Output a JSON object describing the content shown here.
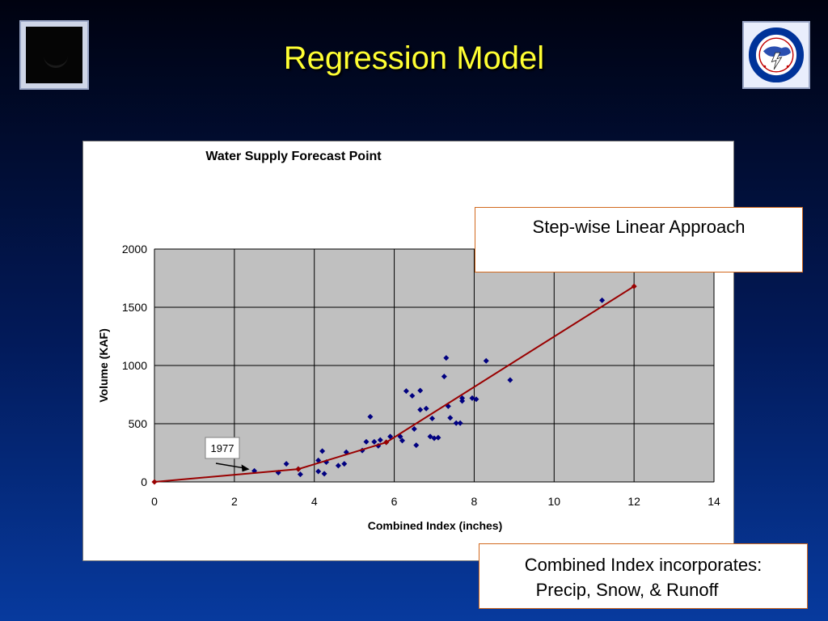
{
  "slide": {
    "title": "Regression Model"
  },
  "logos": {
    "left": {
      "icon": "dark-emblem"
    },
    "right": {
      "icon": "nws-seal",
      "text": "NATIONAL WEATHER SERVICE"
    }
  },
  "callouts": {
    "method": "Step-wise Linear Approach",
    "index_line1": "Combined Index incorporates:",
    "index_line2": "Precip, Snow, & Runoff"
  },
  "chart_data": {
    "type": "scatter",
    "title": "Water Supply Forecast Point",
    "xlabel": "Combined Index (inches)",
    "ylabel": "Volume (KAF)",
    "xlim": [
      0,
      14
    ],
    "ylim": [
      0,
      2000
    ],
    "x_ticks": [
      0,
      2,
      4,
      6,
      8,
      10,
      12,
      14
    ],
    "y_ticks": [
      0,
      500,
      1000,
      1500,
      2000
    ],
    "grid": true,
    "plot_background": "#c0c0c0",
    "annotation": {
      "text": "1977",
      "x": 2.5,
      "y": 95
    },
    "series": [
      {
        "type": "scatter",
        "color": "#000080",
        "points": [
          [
            2.5,
            95
          ],
          [
            3.1,
            80
          ],
          [
            3.3,
            155
          ],
          [
            3.6,
            110
          ],
          [
            3.65,
            65
          ],
          [
            4.1,
            90
          ],
          [
            4.1,
            185
          ],
          [
            4.2,
            265
          ],
          [
            4.25,
            70
          ],
          [
            4.3,
            170
          ],
          [
            4.6,
            140
          ],
          [
            4.75,
            155
          ],
          [
            4.8,
            255
          ],
          [
            5.2,
            270
          ],
          [
            5.3,
            345
          ],
          [
            5.4,
            560
          ],
          [
            5.5,
            345
          ],
          [
            5.6,
            310
          ],
          [
            5.65,
            360
          ],
          [
            5.8,
            340
          ],
          [
            5.9,
            390
          ],
          [
            6.15,
            390
          ],
          [
            6.2,
            355
          ],
          [
            6.3,
            780
          ],
          [
            6.45,
            740
          ],
          [
            6.5,
            455
          ],
          [
            6.55,
            315
          ],
          [
            6.65,
            620
          ],
          [
            6.65,
            785
          ],
          [
            6.8,
            630
          ],
          [
            6.9,
            390
          ],
          [
            6.95,
            545
          ],
          [
            7.0,
            375
          ],
          [
            7.1,
            380
          ],
          [
            7.25,
            905
          ],
          [
            7.3,
            1065
          ],
          [
            7.35,
            650
          ],
          [
            7.4,
            550
          ],
          [
            7.55,
            505
          ],
          [
            7.65,
            505
          ],
          [
            7.7,
            720
          ],
          [
            7.7,
            695
          ],
          [
            7.95,
            720
          ],
          [
            8.05,
            710
          ],
          [
            8.3,
            1040
          ],
          [
            8.9,
            875
          ],
          [
            11.2,
            1560
          ]
        ]
      },
      {
        "type": "line",
        "color": "#990000",
        "points": [
          [
            0,
            0
          ],
          [
            3.6,
            110
          ],
          [
            5.8,
            340
          ],
          [
            12,
            1680
          ]
        ]
      }
    ]
  }
}
